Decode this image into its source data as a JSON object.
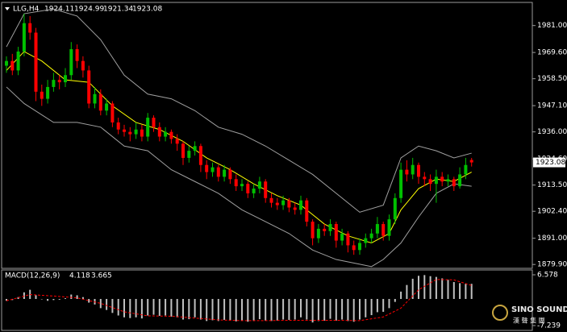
{
  "chart_data": [
    {
      "type": "candlestick",
      "title": "LLG,H4",
      "header_values": [
        1924.11,
        1924.99,
        1921.34,
        1923.08
      ],
      "open": [
        1964,
        1966,
        1962,
        1970,
        1982,
        1978,
        1953,
        1950,
        1955,
        1958,
        1957,
        1960,
        1971,
        1966,
        1962,
        1948,
        1952,
        1945,
        1948,
        1940,
        1937,
        1936,
        1935,
        1937,
        1934,
        1942,
        1938,
        1934,
        1936,
        1933,
        1931,
        1925,
        1928,
        1930,
        1922,
        1919,
        1921,
        1917,
        1920,
        1916,
        1913,
        1914,
        1910,
        1912,
        1915,
        1908,
        1906,
        1905,
        1907,
        1904,
        1903,
        1907,
        1898,
        1891,
        1895,
        1894,
        1897,
        1890,
        1893,
        1888,
        1886,
        1889,
        1891,
        1893,
        1897,
        1892,
        1899,
        1908,
        1920,
        1918,
        1922,
        1917,
        1916,
        1914,
        1917,
        1915,
        1916,
        1913,
        1918,
        1924.11
      ],
      "high": [
        1968,
        1969,
        1972,
        1986,
        1985,
        1980,
        1956,
        1958,
        1961,
        1960,
        1963,
        1974,
        1973,
        1968,
        1964,
        1955,
        1954,
        1950,
        1949,
        1942,
        1939,
        1938,
        1940,
        1939,
        1944,
        1943,
        1940,
        1938,
        1937,
        1935,
        1932,
        1930,
        1932,
        1931,
        1924,
        1923,
        1922,
        1922,
        1921,
        1918,
        1916,
        1915,
        1914,
        1917,
        1916,
        1910,
        1908,
        1909,
        1908,
        1906,
        1909,
        1908,
        1899,
        1897,
        1897,
        1899,
        1898,
        1895,
        1894,
        1890,
        1891,
        1893,
        1895,
        1900,
        1898,
        1901,
        1910,
        1923,
        1924,
        1925,
        1923,
        1919,
        1918,
        1920,
        1919,
        1918,
        1917,
        1921,
        1925,
        1924.99
      ],
      "low": [
        1961,
        1960,
        1960,
        1968,
        1975,
        1949,
        1947,
        1948,
        1953,
        1954,
        1955,
        1958,
        1963,
        1959,
        1946,
        1946,
        1943,
        1943,
        1938,
        1935,
        1934,
        1932,
        1933,
        1932,
        1932,
        1936,
        1932,
        1932,
        1931,
        1928,
        1922,
        1923,
        1926,
        1919,
        1916,
        1917,
        1915,
        1915,
        1914,
        1911,
        1911,
        1908,
        1908,
        1910,
        1906,
        1904,
        1903,
        1903,
        1902,
        1901,
        1901,
        1896,
        1888,
        1889,
        1892,
        1892,
        1887,
        1888,
        1885,
        1884,
        1884,
        1887,
        1889,
        1891,
        1890,
        1890,
        1897,
        1906,
        1915,
        1916,
        1914,
        1913,
        1911,
        1906,
        1913,
        1913,
        1911,
        1912,
        1916,
        1921.34
      ],
      "close": [
        1966,
        1962,
        1970,
        1982,
        1978,
        1953,
        1950,
        1955,
        1958,
        1957,
        1960,
        1971,
        1966,
        1962,
        1948,
        1952,
        1945,
        1948,
        1940,
        1937,
        1936,
        1935,
        1937,
        1934,
        1942,
        1938,
        1934,
        1936,
        1933,
        1931,
        1925,
        1928,
        1930,
        1922,
        1919,
        1921,
        1917,
        1920,
        1916,
        1913,
        1914,
        1910,
        1912,
        1915,
        1908,
        1906,
        1905,
        1907,
        1904,
        1903,
        1907,
        1898,
        1891,
        1895,
        1894,
        1897,
        1890,
        1893,
        1888,
        1886,
        1889,
        1891,
        1893,
        1897,
        1892,
        1899,
        1908,
        1920,
        1918,
        1922,
        1917,
        1916,
        1914,
        1917,
        1915,
        1916,
        1913,
        1918,
        1922,
        1923.08
      ],
      "up_color": "#00c000",
      "down_color": "#ff0000",
      "series": [
        {
          "color": "#a0a0a0",
          "x": [
            0,
            3,
            8,
            12,
            16,
            20,
            24,
            28,
            32,
            36,
            40,
            44,
            48,
            52,
            56,
            60,
            64,
            67,
            70,
            73,
            76,
            79
          ],
          "values": [
            1972,
            1986,
            1988,
            1985,
            1975,
            1960,
            1952,
            1950,
            1945,
            1938,
            1935,
            1930,
            1924,
            1918,
            1910,
            1902,
            1905,
            1925,
            1930,
            1928,
            1925,
            1927
          ]
        },
        {
          "color": "#a0a0a0",
          "x": [
            0,
            3,
            8,
            12,
            16,
            20,
            24,
            28,
            32,
            36,
            40,
            44,
            48,
            52,
            56,
            60,
            62,
            64,
            67,
            70,
            73,
            76,
            79
          ],
          "values": [
            1955,
            1948,
            1940,
            1940,
            1938,
            1930,
            1928,
            1920,
            1915,
            1910,
            1903,
            1898,
            1893,
            1886,
            1882,
            1880,
            1879,
            1882,
            1889,
            1900,
            1910,
            1914,
            1913
          ]
        },
        {
          "color": "#ffff00",
          "x": [
            0,
            3,
            6,
            10,
            14,
            18,
            22,
            26,
            30,
            34,
            38,
            42,
            46,
            50,
            54,
            58,
            62,
            65,
            67,
            70,
            73,
            76,
            79
          ],
          "values": [
            1962,
            1970,
            1966,
            1958,
            1957,
            1947,
            1940,
            1937,
            1932,
            1925,
            1920,
            1914,
            1909,
            1905,
            1897,
            1892,
            1889,
            1893,
            1903,
            1912,
            1916,
            1915,
            1919
          ]
        }
      ],
      "current_price": 1923.08,
      "ylim": [
        1878.6,
        1990.1
      ],
      "yticks": [
        {
          "value": 1981,
          "label": "1981.00"
        },
        {
          "value": 1969.6,
          "label": "1969.60"
        },
        {
          "value": 1958.5,
          "label": "1958.50"
        },
        {
          "value": 1947.1,
          "label": "1947.10"
        },
        {
          "value": 1936,
          "label": "1936.00"
        },
        {
          "value": 1924.6,
          "label": "1924.60"
        },
        {
          "value": 1913.5,
          "label": "1913.50"
        },
        {
          "value": 1902.4,
          "label": "1902.40"
        },
        {
          "value": 1891,
          "label": "1891.00"
        },
        {
          "value": 1879.9,
          "label": "1879.90"
        }
      ]
    },
    {
      "type": "macd",
      "title": "MACD(12,26,9)",
      "histogram": [
        -0.5,
        -0.3,
        0.5,
        1.8,
        2.5,
        1.0,
        0.0,
        -0.5,
        -0.3,
        -0.2,
        0.2,
        1.2,
        1.0,
        0.5,
        -1.0,
        -1.5,
        -2.5,
        -3.0,
        -3.8,
        -4.5,
        -5.0,
        -5.2,
        -5.0,
        -5.3,
        -4.5,
        -4.3,
        -4.6,
        -4.5,
        -4.8,
        -5.0,
        -5.6,
        -5.5,
        -5.0,
        -5.6,
        -6.0,
        -5.8,
        -6.0,
        -5.7,
        -5.9,
        -6.1,
        -5.9,
        -6.2,
        -6.0,
        -5.5,
        -5.9,
        -6.0,
        -5.9,
        -5.6,
        -5.7,
        -5.6,
        -5.0,
        -5.6,
        -6.4,
        -6.0,
        -5.9,
        -5.4,
        -5.9,
        -5.6,
        -6.0,
        -6.2,
        -5.6,
        -5.0,
        -4.4,
        -3.6,
        -3.5,
        -2.5,
        -0.8,
        2.0,
        3.8,
        5.5,
        6.3,
        6.5,
        6.2,
        6.0,
        5.6,
        5.2,
        4.6,
        4.3,
        4.1,
        4.118
      ],
      "histogram_color": "#c0c0c0",
      "signal": {
        "color": "#ff0000",
        "x": [
          0,
          4,
          8,
          12,
          16,
          20,
          24,
          28,
          32,
          36,
          40,
          44,
          48,
          52,
          56,
          60,
          64,
          67,
          70,
          73,
          76,
          79
        ],
        "values": [
          -0.5,
          1.2,
          0.8,
          0.3,
          -1.2,
          -3.5,
          -4.6,
          -4.7,
          -5.2,
          -5.7,
          -5.9,
          -5.9,
          -5.8,
          -5.8,
          -5.8,
          -5.9,
          -4.9,
          -2.5,
          2.5,
          5.3,
          5.2,
          3.665
        ]
      },
      "ylim": [
        -7.239,
        6.578
      ],
      "yticks": [
        6.578,
        -7.239
      ]
    }
  ],
  "logo": {
    "text": "SINO SOUND",
    "subtext": "漢 聲 集 團"
  }
}
